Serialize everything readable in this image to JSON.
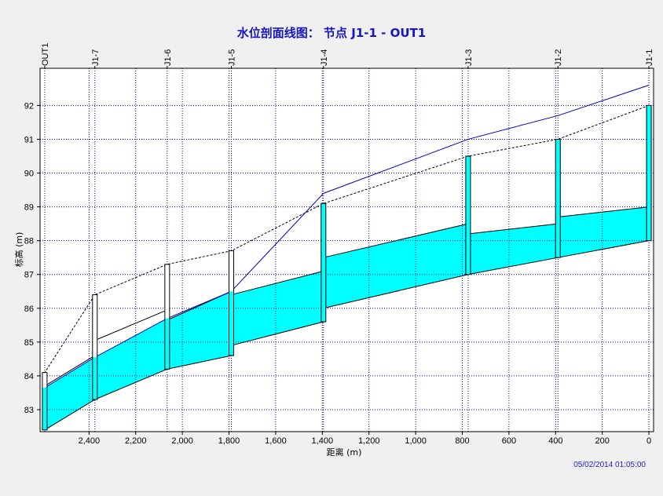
{
  "timestamp": "05/02/2014 01:05:00",
  "colors": {
    "background": "#f0f0f0",
    "plot_bg": "#ffffff",
    "water": "#00ffff",
    "grid": "#0000a0",
    "hgl": "#0000c0",
    "title": "#1515c8"
  },
  "chart_data": {
    "type": "area",
    "title": "水位剖面线图： 节点 J1-1 - OUT1",
    "xlabel": "距离 (m)",
    "ylabel": "标高 (m)",
    "x_reversed": true,
    "xlim": [
      2610,
      -20
    ],
    "ylim": [
      82.35,
      93.1
    ],
    "grid": true,
    "x_ticks": [
      2400,
      2200,
      2000,
      1800,
      1600,
      1400,
      1200,
      1000,
      800,
      600,
      400,
      200,
      0
    ],
    "x_tick_labels": [
      "2,400",
      "2,200",
      "2,000",
      "1,800",
      "1,600",
      "1,400",
      "1,200",
      "1,000",
      "800",
      "600",
      "400",
      "200",
      "0"
    ],
    "y_ticks": [
      83,
      84,
      85,
      86,
      87,
      88,
      89,
      90,
      91,
      92
    ],
    "y_tick_labels": [
      "83",
      "84",
      "85",
      "86",
      "87",
      "88",
      "89",
      "90",
      "91",
      "92"
    ],
    "nodes": [
      {
        "name": "J1-1",
        "x": 0,
        "invert": 88.0,
        "rim": 92.0,
        "hgl": 92.6
      },
      {
        "name": "J1-2",
        "x": 390,
        "invert": 87.5,
        "rim": 91.0,
        "hgl": 91.7
      },
      {
        "name": "J1-3",
        "x": 775,
        "invert": 87.0,
        "rim": 90.5,
        "hgl": 91.0
      },
      {
        "name": "J1-4",
        "x": 1395,
        "invert": 85.6,
        "rim": 89.1,
        "hgl": 89.4
      },
      {
        "name": "J1-5",
        "x": 1790,
        "invert": 84.6,
        "rim": 87.7,
        "hgl": 86.5
      },
      {
        "name": "J1-6",
        "x": 2065,
        "invert": 84.2,
        "rim": 87.3,
        "hgl": 85.7
      },
      {
        "name": "J1-7",
        "x": 2375,
        "invert": 83.3,
        "rim": 86.4,
        "hgl": 84.55
      },
      {
        "name": "OUT1",
        "x": 2590,
        "invert": 82.4,
        "rim": 84.1,
        "hgl": 83.65
      }
    ],
    "links": [
      {
        "from": "J1-1",
        "to": "J1-2",
        "up_invert": 88.0,
        "up_crown": 89.0,
        "dn_invert": 87.5,
        "dn_crown": 88.7
      },
      {
        "from": "J1-2",
        "to": "J1-3",
        "up_invert": 87.5,
        "up_crown": 88.5,
        "dn_invert": 87.0,
        "dn_crown": 88.2
      },
      {
        "from": "J1-3",
        "to": "J1-4",
        "up_invert": 87.0,
        "up_crown": 88.5,
        "dn_invert": 86.0,
        "dn_crown": 87.5
      },
      {
        "from": "J1-4",
        "to": "J1-5",
        "up_invert": 85.6,
        "up_crown": 87.1,
        "dn_invert": 84.9,
        "dn_crown": 86.4
      },
      {
        "from": "J1-5",
        "to": "J1-6",
        "up_invert": 84.6,
        "up_crown": 86.5,
        "dn_invert": 84.2,
        "dn_crown": 85.65
      },
      {
        "from": "J1-6",
        "to": "J1-7",
        "up_invert": 84.2,
        "up_crown": 85.95,
        "dn_invert": 83.3,
        "dn_crown": 85.05
      },
      {
        "from": "J1-7",
        "to": "OUT1",
        "up_invert": 83.3,
        "up_crown": 84.6,
        "dn_invert": 82.4,
        "dn_crown": 83.7
      }
    ]
  }
}
